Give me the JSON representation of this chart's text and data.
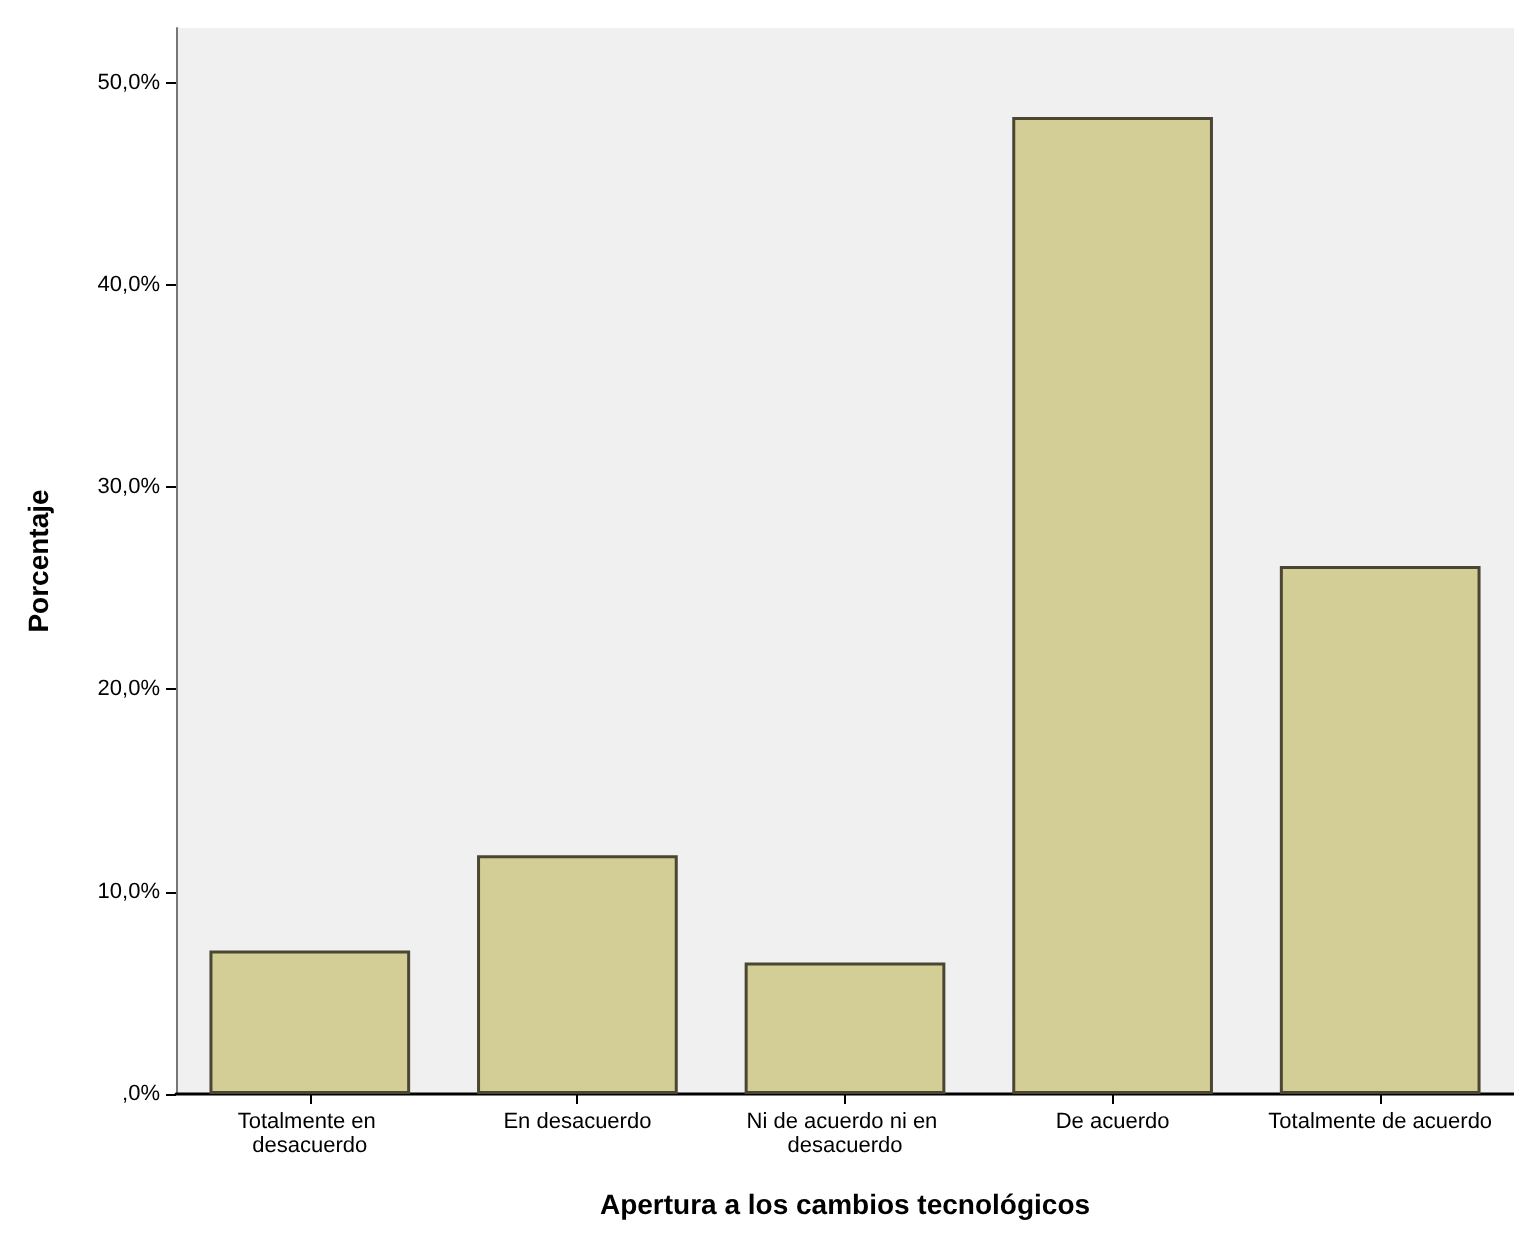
{
  "chart_data": {
    "type": "bar",
    "xlabel": "Apertura a los cambios tecnológicos",
    "ylabel": "Porcentaje",
    "categories": [
      "Totalmente en desacuerdo",
      "En desacuerdo",
      "Ni de acuerdo ni en desacuerdo",
      "De acuerdo",
      "Totalmente de acuerdo"
    ],
    "values": [
      7.1,
      11.8,
      6.5,
      48.3,
      26.1
    ],
    "color": "#d3cd96",
    "ylim": [
      0,
      52.7
    ],
    "yticks": [
      {
        "value": 0,
        "label": ",0%"
      },
      {
        "value": 10,
        "label": "10,0%"
      },
      {
        "value": 20,
        "label": "20,0%"
      },
      {
        "value": 30,
        "label": "30,0%"
      },
      {
        "value": 40,
        "label": "40,0%"
      },
      {
        "value": 50,
        "label": "50,0%"
      }
    ],
    "grid": false
  }
}
